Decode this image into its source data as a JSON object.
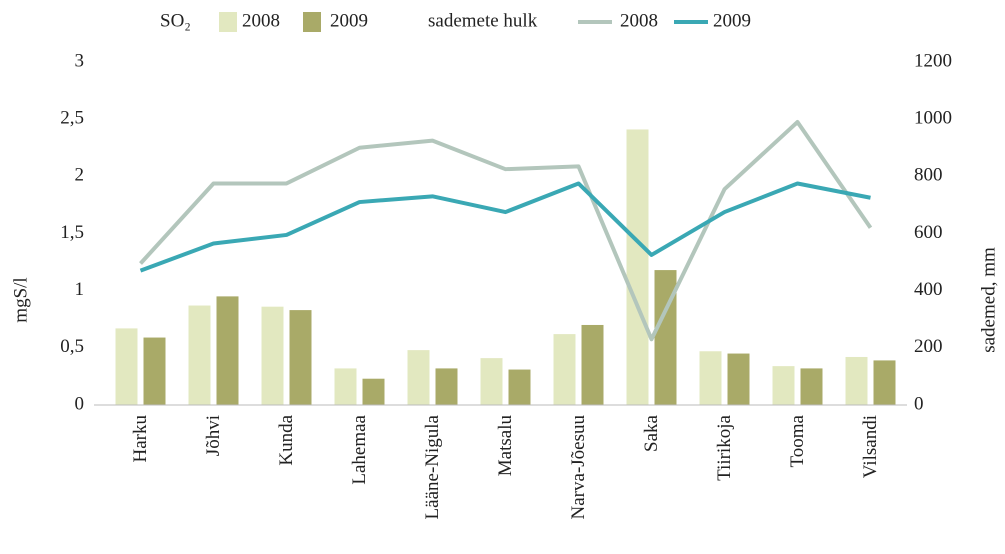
{
  "chart_data": {
    "type": "combo",
    "categories": [
      "Harku",
      "Jõhvi",
      "Kunda",
      "Lahemaa",
      "Lääne-Nigula",
      "Matsalu",
      "Narva-Jõesuu",
      "Saka",
      "Tiirikoja",
      "Tooma",
      "Vilsandi"
    ],
    "legend_titles": [
      "SO₂",
      "sademete hulk"
    ],
    "series": [
      {
        "name": "2008",
        "type": "bar",
        "color": "#e2e8c0",
        "values": [
          0.67,
          0.87,
          0.86,
          0.32,
          0.48,
          0.41,
          0.62,
          2.41,
          0.47,
          0.34,
          0.42
        ]
      },
      {
        "name": "2009",
        "type": "bar",
        "color": "#a9aa68",
        "values": [
          0.59,
          0.95,
          0.83,
          0.23,
          0.32,
          0.31,
          0.7,
          1.18,
          0.45,
          0.32,
          0.39
        ]
      },
      {
        "name": "2008",
        "type": "line",
        "axis": "y2",
        "color": "#b3c6bc",
        "values": [
          495,
          775,
          775,
          900,
          925,
          825,
          835,
          230,
          755,
          990,
          620
        ]
      },
      {
        "name": "2009",
        "type": "line",
        "axis": "y2",
        "color": "#3aa8b4",
        "values": [
          470,
          565,
          595,
          710,
          730,
          675,
          775,
          525,
          675,
          775,
          725
        ]
      }
    ],
    "ylabel": "mgS/l",
    "y2label": "sademed, mm",
    "ylim": [
      0,
      3
    ],
    "yticks": [
      0,
      {
        "value": 0.5,
        "label": "0,5"
      },
      1,
      {
        "value": 1.5,
        "label": "1,5"
      },
      2,
      {
        "value": 2.5,
        "label": "2,5"
      },
      3
    ],
    "y2lim": [
      0,
      1200
    ],
    "y2ticks": [
      0,
      200,
      400,
      600,
      800,
      1000,
      1200
    ],
    "grid": false
  }
}
